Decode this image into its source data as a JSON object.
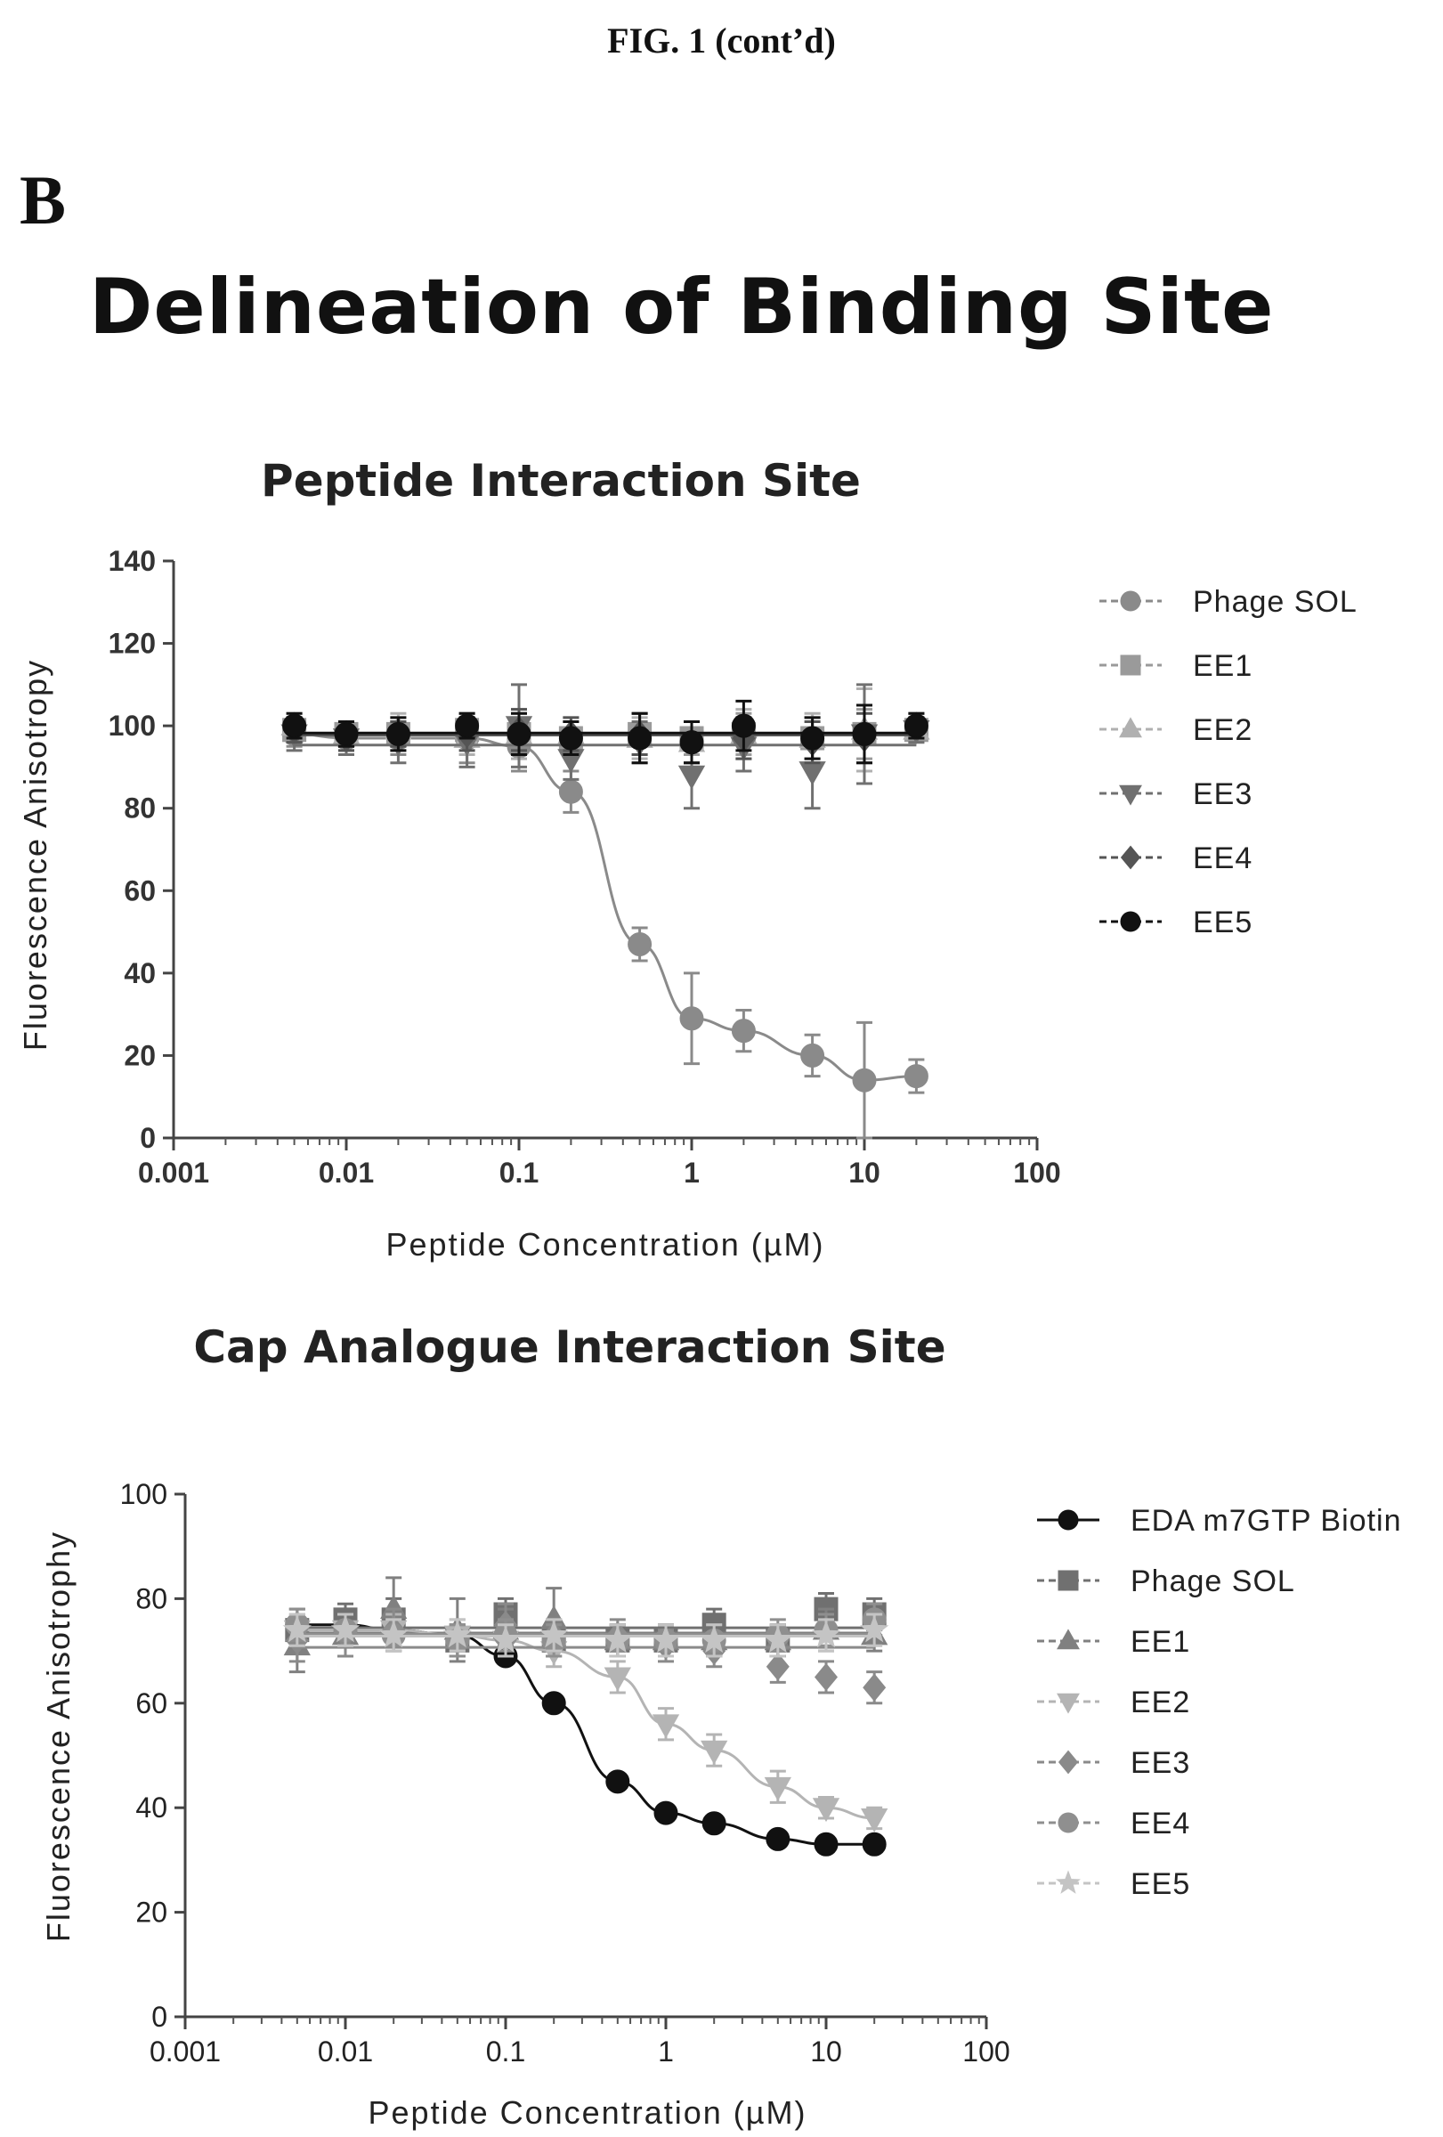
{
  "figure": {
    "label": "FIG. 1 (cont’d)",
    "panel": "B",
    "title": "Delineation of Binding Site"
  },
  "chart_data": [
    {
      "type": "scatter",
      "title": "Peptide Interaction Site",
      "xlabel": "Peptide Concentration (µM)",
      "ylabel": "Fluorescence Anisotropy",
      "xscale": "log",
      "xlim": [
        0.001,
        100
      ],
      "ylim": [
        0,
        140
      ],
      "xticks": [
        "0.001",
        "0.01",
        "0.1",
        "1",
        "10",
        "100"
      ],
      "yticks": [
        "0",
        "20",
        "40",
        "60",
        "80",
        "100",
        "120",
        "140"
      ],
      "legend_position": "right",
      "x": [
        0.005,
        0.01,
        0.02,
        0.05,
        0.1,
        0.2,
        0.5,
        1,
        2,
        5,
        10,
        20
      ],
      "series": [
        {
          "name": "Phage SOL",
          "marker": "circle",
          "color": "#8a8a8a",
          "fit": "sigmoid",
          "values": [
            98,
            97,
            97,
            97,
            95,
            84,
            47,
            29,
            26,
            20,
            14,
            15
          ],
          "errors": [
            3,
            3,
            4,
            6,
            6,
            5,
            4,
            11,
            5,
            5,
            14,
            4
          ]
        },
        {
          "name": "EE1",
          "marker": "square",
          "color": "#9a9a9a",
          "fit": "flat",
          "values": [
            99,
            98,
            98,
            99,
            98,
            97,
            98,
            97,
            98,
            97,
            98,
            99
          ],
          "errors": [
            3,
            3,
            4,
            4,
            5,
            4,
            5,
            4,
            5,
            5,
            6,
            3
          ]
        },
        {
          "name": "EE2",
          "marker": "triangle-up",
          "color": "#b0b0b0",
          "fit": "flat",
          "values": [
            100,
            98,
            99,
            97,
            98,
            98,
            97,
            96,
            98,
            97,
            99,
            99
          ],
          "errors": [
            3,
            3,
            4,
            4,
            6,
            4,
            5,
            5,
            6,
            6,
            10,
            3
          ]
        },
        {
          "name": "EE3",
          "marker": "triangle-down",
          "color": "#707070",
          "fit": "flat",
          "values": [
            98,
            97,
            96,
            96,
            100,
            92,
            96,
            88,
            95,
            89,
            98,
            99
          ],
          "errors": [
            4,
            4,
            5,
            6,
            10,
            5,
            5,
            8,
            6,
            9,
            12,
            3
          ]
        },
        {
          "name": "EE4",
          "marker": "diamond",
          "color": "#555555",
          "fit": "flat",
          "values": [
            99,
            97,
            98,
            98,
            99,
            98,
            98,
            96,
            97,
            96,
            97,
            100
          ],
          "errors": [
            3,
            3,
            3,
            4,
            5,
            4,
            5,
            5,
            5,
            5,
            6,
            3
          ]
        },
        {
          "name": "EE5",
          "marker": "circle",
          "color": "#111111",
          "fit": "flat",
          "values": [
            100,
            98,
            98,
            100,
            98,
            97,
            97,
            96,
            100,
            97,
            98,
            100
          ],
          "errors": [
            3,
            3,
            4,
            3,
            5,
            4,
            6,
            5,
            6,
            5,
            7,
            3
          ]
        }
      ]
    },
    {
      "type": "scatter",
      "title": "Cap Analogue Interaction Site",
      "xlabel": "Peptide Concentration (µM)",
      "ylabel": "Fluorescence Anisotrophy",
      "xscale": "log",
      "xlim": [
        0.001,
        100
      ],
      "ylim": [
        0,
        100
      ],
      "xticks": [
        "0.001",
        "0.01",
        "0.1",
        "1",
        "10",
        "100"
      ],
      "yticks": [
        "0",
        "20",
        "40",
        "60",
        "80",
        "100"
      ],
      "legend_position": "right",
      "x": [
        0.005,
        0.01,
        0.02,
        0.05,
        0.1,
        0.2,
        0.5,
        1,
        2,
        5,
        10,
        20
      ],
      "series": [
        {
          "name": "EDA m7GTP Biotin",
          "marker": "circle",
          "color": "#111111",
          "fit": "sigmoid",
          "values": [
            75,
            75,
            74,
            73,
            69,
            60,
            45,
            39,
            37,
            34,
            33,
            33
          ],
          "errors": [
            1,
            1,
            1,
            1,
            1,
            1,
            1,
            1,
            1,
            1,
            1,
            1
          ]
        },
        {
          "name": "Phage SOL",
          "marker": "square",
          "color": "#707070",
          "fit": "flat",
          "values": [
            74,
            76,
            76,
            72,
            77,
            72,
            72,
            72,
            75,
            72,
            78,
            77
          ],
          "errors": [
            4,
            3,
            4,
            3,
            3,
            3,
            3,
            3,
            3,
            3,
            3,
            3
          ]
        },
        {
          "name": "EE1",
          "marker": "triangle-up",
          "color": "#808080",
          "fit": "flat",
          "values": [
            71,
            73,
            78,
            74,
            74,
            76,
            72,
            72,
            72,
            72,
            74,
            73
          ],
          "errors": [
            5,
            4,
            6,
            6,
            4,
            6,
            3,
            3,
            3,
            3,
            4,
            3
          ]
        },
        {
          "name": "EE2",
          "marker": "triangle-down",
          "color": "#b4b4b4",
          "fit": "sigmoid",
          "values": [
            74,
            74,
            74,
            73,
            72,
            70,
            65,
            56,
            51,
            44,
            40,
            38
          ],
          "errors": [
            3,
            3,
            3,
            3,
            3,
            3,
            3,
            3,
            3,
            3,
            2,
            2
          ]
        },
        {
          "name": "EE3",
          "marker": "diamond",
          "color": "#8a8a8a",
          "fit": "flat",
          "values": [
            72,
            73,
            74,
            72,
            75,
            73,
            73,
            71,
            70,
            67,
            65,
            63
          ],
          "errors": [
            4,
            4,
            4,
            3,
            4,
            3,
            3,
            3,
            3,
            3,
            3,
            3
          ]
        },
        {
          "name": "EE4",
          "marker": "circle",
          "color": "#8f8f8f",
          "fit": "flat",
          "values": [
            75,
            74,
            73,
            72,
            73,
            72,
            72,
            72,
            72,
            73,
            74,
            76
          ],
          "errors": [
            3,
            3,
            3,
            3,
            3,
            3,
            3,
            3,
            3,
            3,
            3,
            3
          ]
        },
        {
          "name": "EE5",
          "marker": "star",
          "color": "#c4c4c4",
          "fit": "flat",
          "values": [
            74,
            74,
            73,
            73,
            72,
            73,
            72,
            72,
            72,
            72,
            73,
            74
          ],
          "errors": [
            3,
            3,
            3,
            3,
            3,
            3,
            3,
            3,
            3,
            3,
            3,
            3
          ]
        }
      ]
    }
  ]
}
